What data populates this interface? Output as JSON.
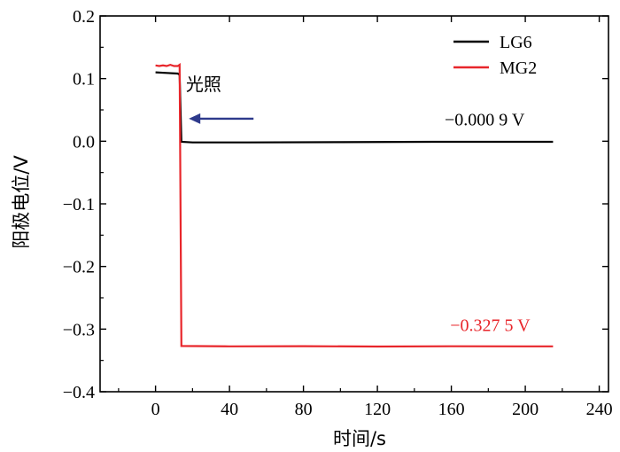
{
  "chart_data": {
    "type": "line",
    "xlabel": "时间/s",
    "ylabel": "阳极电位/V",
    "xlim": [
      -30,
      245
    ],
    "ylim": [
      -0.4,
      0.2
    ],
    "xticks": [
      0,
      40,
      80,
      120,
      160,
      200,
      240
    ],
    "yticks": [
      0.2,
      0.1,
      0.0,
      -0.1,
      -0.2,
      -0.3,
      -0.4
    ],
    "ytick_labels": [
      "0.2",
      "0.1",
      "0.0",
      "−0.1",
      "−0.2",
      "−0.3",
      "−0.4"
    ],
    "grid": false,
    "legend_position": "top-right",
    "series": [
      {
        "name": "LG6",
        "color": "#000000",
        "points": [
          [
            0,
            0.11
          ],
          [
            6,
            0.109
          ],
          [
            12,
            0.108
          ],
          [
            13,
            0.106
          ],
          [
            14,
            -0.001
          ],
          [
            20,
            -0.002
          ],
          [
            50,
            -0.002
          ],
          [
            100,
            -0.0015
          ],
          [
            150,
            -0.001
          ],
          [
            215,
            -0.0009
          ]
        ]
      },
      {
        "name": "MG2",
        "color": "#e8262b",
        "points": [
          [
            0,
            0.121
          ],
          [
            2,
            0.12
          ],
          [
            4,
            0.121
          ],
          [
            6,
            0.12
          ],
          [
            8,
            0.122
          ],
          [
            10,
            0.12
          ],
          [
            12,
            0.12
          ],
          [
            13,
            0.122
          ],
          [
            14,
            -0.327
          ],
          [
            40,
            -0.3275
          ],
          [
            80,
            -0.3272
          ],
          [
            120,
            -0.3278
          ],
          [
            160,
            -0.3274
          ],
          [
            200,
            -0.3276
          ],
          [
            215,
            -0.3275
          ]
        ]
      }
    ],
    "annotations": [
      {
        "text": "光照",
        "x": 26,
        "y": 0.081,
        "color": "#000000"
      },
      {
        "text": "−0.000 9 V",
        "x": 178,
        "y": 0.025,
        "color": "#000000"
      },
      {
        "text": "−0.327 5 V",
        "x": 181,
        "y": -0.303,
        "color": "#e8262b"
      }
    ],
    "arrow": {
      "from": [
        53,
        0.036
      ],
      "to": [
        18,
        0.036
      ],
      "color": "#2e3a8c"
    }
  }
}
